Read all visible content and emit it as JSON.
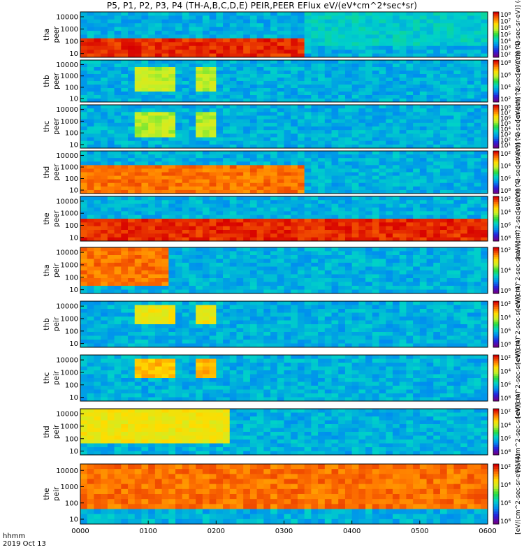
{
  "title": "P5, P1, P2, P3, P4 (TH-A,B,C,D,E) PEIR,PEER EFlux eV/(eV*cm^2*sec*sr)",
  "time_axis": {
    "label_line1": "hhmm",
    "label_line2": "2019 Oct 13",
    "ticks": [
      "0000",
      "0100",
      "0200",
      "0300",
      "0400",
      "0500",
      "0600"
    ],
    "range_hours": [
      0,
      6
    ]
  },
  "chart_data": {
    "type": "heatmap",
    "yscale": "log",
    "colorscale": "log",
    "colormap": "rainbow",
    "panels": [
      {
        "probe": "tha",
        "species": "peer",
        "ylim": [
          5,
          25000
        ],
        "yticks": [
          "10",
          "100",
          "1000",
          "10000"
        ],
        "clim": [
          10,
          100000000.0
        ],
        "cbar_ticks": [
          "10²",
          "10³",
          "10⁴",
          "10⁵",
          "10⁶",
          "10⁷",
          "10⁸"
        ],
        "cbar_label": "[eV/(cm^2-sec-sr-eV)] (4)",
        "features": [
          {
            "t": [
              0.0,
              3.3
            ],
            "e": [
              5,
              200
            ],
            "level": 8
          },
          {
            "t": [
              3.3,
              6.0
            ],
            "e": [
              50,
              25000
            ],
            "level": 4.5
          }
        ]
      },
      {
        "probe": "thb",
        "species": "peer",
        "ylim": [
          5,
          25000
        ],
        "yticks": [
          "10",
          "100",
          "1000",
          "10000"
        ],
        "clim": [
          100,
          100000000.0
        ],
        "cbar_ticks": [
          "10²",
          "10⁴",
          "10⁶",
          "10⁸"
        ],
        "cbar_label": "[eV/(cm^2-sec-sr-eV)] (4)",
        "features": [
          {
            "t": [
              0.8,
              1.4
            ],
            "e": [
              50,
              5000
            ],
            "level": 6
          },
          {
            "t": [
              1.75,
              2.0
            ],
            "e": [
              50,
              5000
            ],
            "level": 6
          }
        ]
      },
      {
        "probe": "thc",
        "species": "peer",
        "ylim": [
          5,
          25000
        ],
        "yticks": [
          "10",
          "100",
          "1000",
          "10000"
        ],
        "clim": [
          10,
          100000000.0
        ],
        "cbar_ticks": [
          "10¹",
          "10²",
          "10³",
          "10⁴",
          "10⁵",
          "10⁶",
          "10⁷",
          "10⁸"
        ],
        "cbar_label": "[eV/(cm^2-sec-sr-eV)] (4)",
        "features": [
          {
            "t": [
              0.8,
              1.4
            ],
            "e": [
              50,
              5000
            ],
            "level": 6
          },
          {
            "t": [
              1.75,
              2.0
            ],
            "e": [
              50,
              5000
            ],
            "level": 6
          }
        ]
      },
      {
        "probe": "thd",
        "species": "peer",
        "ylim": [
          5,
          25000
        ],
        "yticks": [
          "10",
          "100",
          "1000",
          "10000"
        ],
        "clim": [
          10,
          100000000.0
        ],
        "cbar_ticks": [
          "10⁸",
          "10⁶",
          "10⁴",
          "10²"
        ],
        "cbar_label": "[eV/(cm^2-sec-sr-eV)] (4)",
        "features": [
          {
            "t": [
              0.0,
              3.3
            ],
            "e": [
              5,
              2000
            ],
            "level": 7.5
          }
        ]
      },
      {
        "probe": "the",
        "species": "peer",
        "ylim": [
          5,
          25000
        ],
        "yticks": [
          "10",
          "100",
          "1000",
          "10000"
        ],
        "clim": [
          10,
          100000000.0
        ],
        "cbar_ticks": [
          "10⁸",
          "10⁶",
          "10⁴",
          "10²"
        ],
        "cbar_label": "[eV/(cm^2-sec-sr-eV)] (4)",
        "features": [
          {
            "t": [
              0.0,
              6.0
            ],
            "e": [
              5,
              500
            ],
            "level": 8
          }
        ]
      },
      {
        "probe": "tha",
        "species": "peir",
        "ylim": [
          5,
          25000
        ],
        "yticks": [
          "10",
          "100",
          "1000",
          "10000"
        ],
        "clim": [
          100,
          100000000.0
        ],
        "cbar_ticks": [
          "10⁶",
          "10⁴",
          "10²"
        ],
        "cbar_label": "[eV/(cm^2-sec-sr-eV)] (4)",
        "features": [
          {
            "t": [
              0.0,
              1.3
            ],
            "e": [
              20,
              25000
            ],
            "level": 7.5
          }
        ]
      },
      {
        "probe": "thb",
        "species": "peir",
        "ylim": [
          5,
          25000
        ],
        "yticks": [
          "10",
          "100",
          "1000",
          "10000"
        ],
        "clim": [
          100,
          100000000.0
        ],
        "cbar_ticks": [
          "10⁸",
          "10⁶",
          "10⁴",
          "10²"
        ],
        "cbar_label": "[eV/(cm^2-sec-sr-eV)] (4)",
        "features": [
          {
            "t": [
              0.8,
              1.4
            ],
            "e": [
              300,
              10000
            ],
            "level": 6.5
          },
          {
            "t": [
              1.75,
              2.0
            ],
            "e": [
              300,
              10000
            ],
            "level": 6.5
          }
        ]
      },
      {
        "probe": "thc",
        "species": "peir",
        "ylim": [
          5,
          25000
        ],
        "yticks": [
          "10",
          "100",
          "1000",
          "10000"
        ],
        "clim": [
          100,
          100000000.0
        ],
        "cbar_ticks": [
          "10⁸",
          "10⁶",
          "10⁴",
          "10²"
        ],
        "cbar_label": "[eV/(cm^2-sec-sr-eV)] (4)",
        "features": [
          {
            "t": [
              0.8,
              1.4
            ],
            "e": [
              300,
              15000
            ],
            "level": 7
          },
          {
            "t": [
              1.75,
              2.0
            ],
            "e": [
              300,
              15000
            ],
            "level": 7
          }
        ]
      },
      {
        "probe": "thd",
        "species": "peir",
        "ylim": [
          5,
          25000
        ],
        "yticks": [
          "10",
          "100",
          "1000",
          "10000"
        ],
        "clim": [
          100,
          100000000.0
        ],
        "cbar_ticks": [
          "10⁸",
          "10⁶",
          "10⁴",
          "10²"
        ],
        "cbar_label": "[eV/(cm^2-sec-sr-eV)] (4)",
        "features": [
          {
            "t": [
              0.0,
              2.2
            ],
            "e": [
              50,
              20000
            ],
            "level": 6.5
          }
        ]
      },
      {
        "probe": "the",
        "species": "peir",
        "ylim": [
          5,
          25000
        ],
        "yticks": [
          "10",
          "100",
          "1000",
          "10000"
        ],
        "clim": [
          100,
          100000000.0
        ],
        "cbar_ticks": [
          "10⁸",
          "10⁶",
          "10⁴",
          "10²"
        ],
        "cbar_label": "[eV/(cm^2-sec-sr-eV)] (4)",
        "features": [
          {
            "t": [
              0.0,
              6.0
            ],
            "e": [
              50,
              20000
            ],
            "level": 7.5
          }
        ]
      }
    ]
  }
}
